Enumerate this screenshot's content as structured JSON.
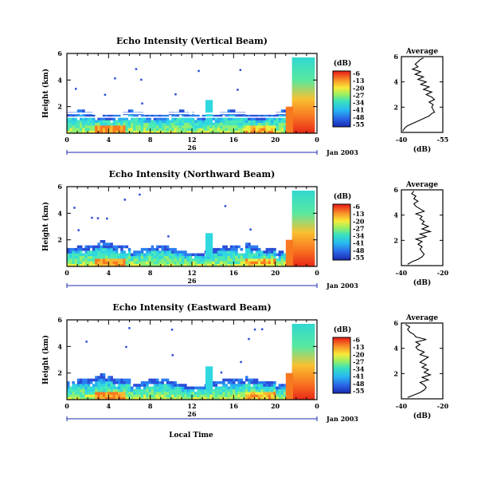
{
  "chart_data": [
    {
      "type": "heatmap",
      "title": "Echo Intensity (Vertical Beam)",
      "ylabel": "Height (km)",
      "yticks": [
        "2",
        "4",
        "6"
      ],
      "ylim": [
        0,
        6
      ],
      "xticks": [
        "0",
        "4",
        "8",
        "12",
        "16",
        "20",
        "0"
      ],
      "xlim": [
        0,
        24
      ],
      "date_label": "26",
      "date_suffix": "Jan 2003",
      "colorbar": {
        "unit": "(dB)",
        "ticks": [
          "-6",
          "-13",
          "-20",
          "-27",
          "-34",
          "-41",
          "-48",
          "-55"
        ]
      },
      "profile": {
        "title": "Average",
        "xlabel": "(dB)",
        "xticks": [
          "-40",
          "-55"
        ],
        "xlim": [
          -40,
          -55
        ],
        "yticks": [
          "2",
          "4",
          "6"
        ],
        "points": [
          [
            -40.5,
            0.1
          ],
          [
            -41,
            0.3
          ],
          [
            -42,
            0.5
          ],
          [
            -44,
            0.7
          ],
          [
            -46,
            0.9
          ],
          [
            -48,
            1.1
          ],
          [
            -50,
            1.3
          ],
          [
            -51,
            1.5
          ],
          [
            -52,
            1.6
          ],
          [
            -51.5,
            1.8
          ],
          [
            -51,
            2.0
          ],
          [
            -51.5,
            2.2
          ],
          [
            -50,
            2.4
          ],
          [
            -52,
            2.6
          ],
          [
            -51,
            2.8
          ],
          [
            -49,
            3.0
          ],
          [
            -51,
            3.2
          ],
          [
            -48,
            3.4
          ],
          [
            -50,
            3.6
          ],
          [
            -47,
            3.8
          ],
          [
            -49,
            4.0
          ],
          [
            -46,
            4.2
          ],
          [
            -48,
            4.4
          ],
          [
            -45,
            4.6
          ],
          [
            -47,
            4.8
          ],
          [
            -44,
            5.0
          ],
          [
            -46,
            5.2
          ],
          [
            -45,
            5.4
          ],
          [
            -46,
            5.6
          ],
          [
            -47,
            5.8
          ],
          [
            -48,
            5.9
          ]
        ]
      }
    },
    {
      "type": "heatmap",
      "title": "Echo Intensity (Northward Beam)",
      "ylabel": "Height (km)",
      "yticks": [
        "2",
        "4",
        "6"
      ],
      "ylim": [
        0,
        6
      ],
      "xticks": [
        "0",
        "4",
        "8",
        "12",
        "16",
        "20",
        "0"
      ],
      "xlim": [
        0,
        24
      ],
      "date_label": "26",
      "date_suffix": "Jan 2003",
      "colorbar": {
        "unit": "(dB)",
        "ticks": [
          "-6",
          "-13",
          "-20",
          "-27",
          "-34",
          "-41",
          "-48",
          "-55"
        ]
      },
      "profile": {
        "title": "Average",
        "xlabel": "(dB)",
        "xticks": [
          "-40",
          "-20"
        ],
        "xlim": [
          -40,
          -20
        ],
        "yticks": [
          "2",
          "4",
          "6"
        ],
        "points": [
          [
            -37,
            0.1
          ],
          [
            -35,
            0.3
          ],
          [
            -32,
            0.5
          ],
          [
            -30,
            0.7
          ],
          [
            -29,
            0.9
          ],
          [
            -30,
            1.1
          ],
          [
            -31,
            1.3
          ],
          [
            -30,
            1.5
          ],
          [
            -32,
            1.7
          ],
          [
            -30,
            1.9
          ],
          [
            -33,
            2.1
          ],
          [
            -28,
            2.3
          ],
          [
            -31,
            2.5
          ],
          [
            -26,
            2.7
          ],
          [
            -30,
            2.9
          ],
          [
            -27,
            3.1
          ],
          [
            -30,
            3.3
          ],
          [
            -29,
            3.5
          ],
          [
            -31,
            3.7
          ],
          [
            -30,
            3.9
          ],
          [
            -33,
            4.1
          ],
          [
            -29,
            4.3
          ],
          [
            -31,
            4.5
          ],
          [
            -33,
            4.7
          ],
          [
            -34,
            4.9
          ],
          [
            -32,
            5.1
          ],
          [
            -34,
            5.3
          ],
          [
            -33,
            5.5
          ],
          [
            -35,
            5.7
          ],
          [
            -34,
            5.9
          ]
        ]
      }
    },
    {
      "type": "heatmap",
      "title": "Echo Intensity (Eastward Beam)",
      "ylabel": "Height (km)",
      "yticks": [
        "2",
        "4",
        "6"
      ],
      "ylim": [
        0,
        6
      ],
      "xticks": [
        "0",
        "4",
        "8",
        "12",
        "16",
        "20",
        "0"
      ],
      "xlim": [
        0,
        24
      ],
      "date_label": "26",
      "date_suffix": "Jan 2003",
      "xlabel": "Local Time",
      "colorbar": {
        "unit": "(dB)",
        "ticks": [
          "-6",
          "-13",
          "-20",
          "-27",
          "-34",
          "-41",
          "-48",
          "-55"
        ]
      },
      "profile": {
        "title": "Average",
        "xlabel": "(dB)",
        "xticks": [
          "-40",
          "-20"
        ],
        "xlim": [
          -40,
          -20
        ],
        "yticks": [
          "2",
          "4",
          "6"
        ],
        "points": [
          [
            -37,
            0.1
          ],
          [
            -34,
            0.3
          ],
          [
            -31,
            0.5
          ],
          [
            -29,
            0.7
          ],
          [
            -28,
            0.9
          ],
          [
            -29,
            1.1
          ],
          [
            -31,
            1.3
          ],
          [
            -27,
            1.5
          ],
          [
            -30,
            1.7
          ],
          [
            -26,
            1.9
          ],
          [
            -29,
            2.1
          ],
          [
            -27,
            2.3
          ],
          [
            -30,
            2.5
          ],
          [
            -28,
            2.7
          ],
          [
            -31,
            2.9
          ],
          [
            -29,
            3.1
          ],
          [
            -27,
            3.3
          ],
          [
            -31,
            3.5
          ],
          [
            -29,
            3.7
          ],
          [
            -32,
            3.9
          ],
          [
            -33,
            4.1
          ],
          [
            -31,
            4.3
          ],
          [
            -33,
            4.5
          ],
          [
            -28,
            4.7
          ],
          [
            -33,
            4.9
          ],
          [
            -34,
            5.1
          ],
          [
            -36,
            5.3
          ],
          [
            -37,
            5.5
          ],
          [
            -36,
            5.7
          ],
          [
            -38,
            5.9
          ]
        ]
      }
    }
  ]
}
